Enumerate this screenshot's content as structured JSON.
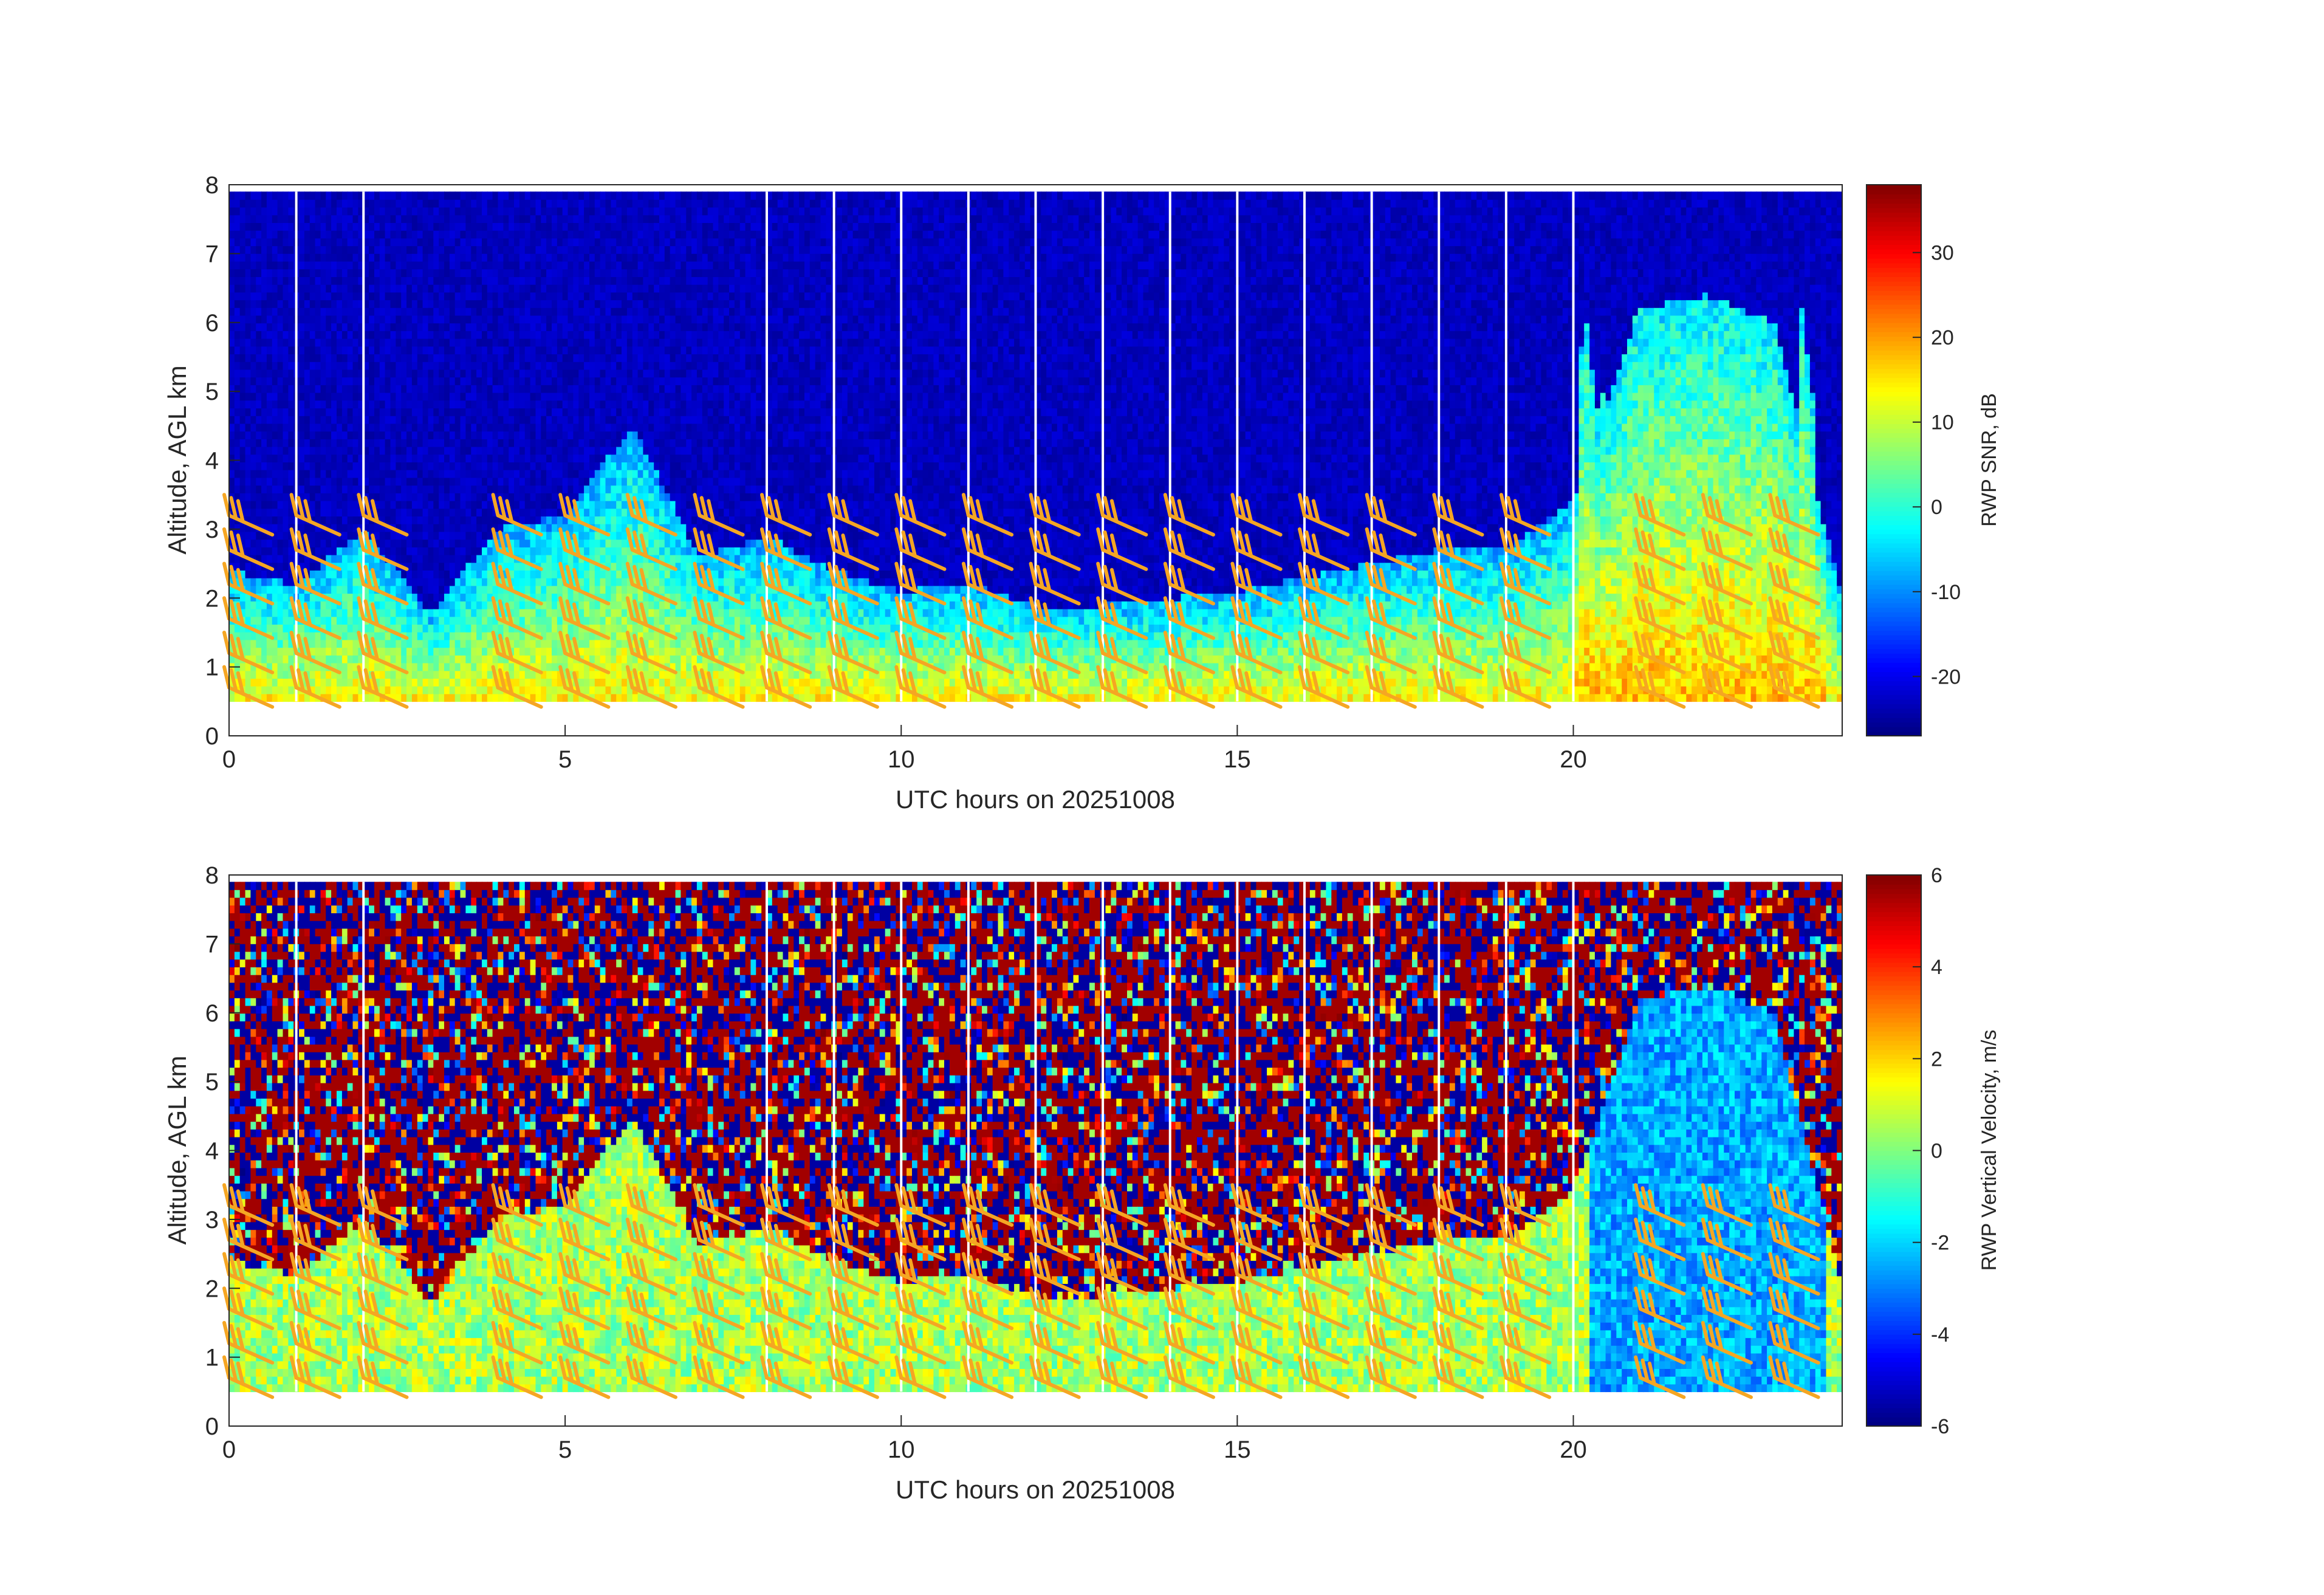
{
  "chart_data": [
    {
      "type": "heatmap",
      "panel": "top",
      "xlabel": "UTC hours on 20251008",
      "ylabel": "Altitude, AGL km",
      "xlim": [
        0,
        24
      ],
      "ylim": [
        0,
        8
      ],
      "xticks": [
        0,
        5,
        10,
        15,
        20
      ],
      "yticks": [
        0,
        1,
        2,
        3,
        4,
        5,
        6,
        7,
        8
      ],
      "data_altitude_range_km": [
        0.5,
        7.9
      ],
      "colorbar": {
        "label": "RWP SNR, dB",
        "range": [
          -27,
          38
        ],
        "ticks": [
          -20,
          -10,
          0,
          10,
          20,
          30
        ],
        "colormap": "jet"
      },
      "background_value": -23,
      "boundary_layer_echo_top_km": [
        [
          0,
          2.4
        ],
        [
          1,
          2.2
        ],
        [
          2,
          3.0
        ],
        [
          3,
          1.8
        ],
        [
          4,
          3.0
        ],
        [
          5,
          3.2
        ],
        [
          6,
          4.5
        ],
        [
          7,
          2.6
        ],
        [
          8,
          2.9
        ],
        [
          9,
          2.4
        ],
        [
          10,
          2.1
        ],
        [
          11,
          2.2
        ],
        [
          12,
          1.9
        ],
        [
          13,
          1.9
        ],
        [
          14,
          2.0
        ],
        [
          15,
          2.1
        ],
        [
          16,
          2.3
        ],
        [
          17,
          2.5
        ],
        [
          18,
          2.7
        ],
        [
          19,
          2.7
        ],
        [
          20,
          3.4
        ],
        [
          21,
          6.2
        ],
        [
          22,
          6.4
        ],
        [
          23,
          6.0
        ],
        [
          24,
          2.0
        ]
      ],
      "deep_echo_columns_utc": [
        20.3,
        20.9,
        21.6,
        22.2,
        22.8,
        23.4
      ],
      "missing_profile_gaps_utc": [
        1.0,
        2.0,
        8.0,
        9.0,
        10.0,
        11.0,
        12.0,
        13.0,
        14.0,
        15.0,
        16.0,
        17.0,
        18.0,
        19.0,
        20.0
      ],
      "wind_barbs": {
        "color": "#f5a623",
        "times_utc": [
          0,
          1,
          2,
          4,
          5,
          6,
          7,
          8,
          9,
          10,
          11,
          12,
          13,
          14,
          15,
          16,
          17,
          18,
          19,
          21,
          22,
          23
        ],
        "levels_km": [
          0.7,
          1.2,
          1.7,
          2.2,
          2.7,
          3.2
        ]
      }
    },
    {
      "type": "heatmap",
      "panel": "bottom",
      "xlabel": "UTC hours on 20251008",
      "ylabel": "Altitude, AGL km",
      "xlim": [
        0,
        24
      ],
      "ylim": [
        0,
        8
      ],
      "xticks": [
        0,
        5,
        10,
        15,
        20
      ],
      "yticks": [
        0,
        1,
        2,
        3,
        4,
        5,
        6,
        7,
        8
      ],
      "data_altitude_range_km": [
        0.5,
        7.9
      ],
      "colorbar": {
        "label": "RWP Vertical Velocity, m/s",
        "range": [
          -6,
          6
        ],
        "ticks": [
          -6,
          -4,
          -2,
          0,
          2,
          4,
          6
        ],
        "colormap": "jet"
      },
      "boundary_layer_value": 0.5,
      "upper_level_noise": "random +/-6",
      "wind_barbs": {
        "color": "#f5a623",
        "times_utc": [
          0,
          1,
          2,
          4,
          5,
          6,
          7,
          8,
          9,
          10,
          11,
          12,
          13,
          14,
          15,
          16,
          17,
          18,
          19,
          21,
          22,
          23
        ],
        "levels_km": [
          0.7,
          1.2,
          1.7,
          2.2,
          2.7,
          3.2
        ]
      }
    }
  ]
}
